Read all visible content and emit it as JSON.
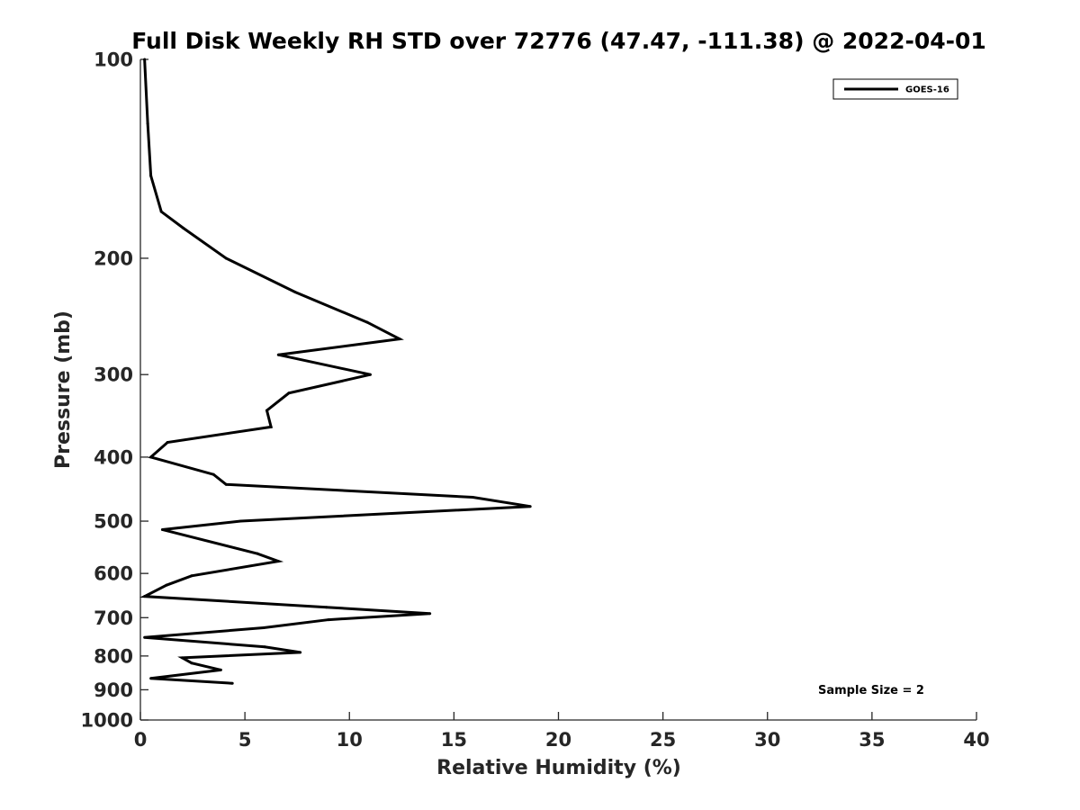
{
  "chart_data": {
    "type": "line",
    "title": "Full Disk Weekly RH STD over 72776 (47.47, -111.38) @ 2022-04-01",
    "xlabel": "Relative Humidity (%)",
    "ylabel": "Pressure (mb)",
    "xlim": [
      0,
      40
    ],
    "ylim": [
      100,
      1000
    ],
    "y_scale": "log",
    "y_reversed": true,
    "x_ticks": [
      0,
      5,
      10,
      15,
      20,
      25,
      30,
      35,
      40
    ],
    "y_ticks": [
      100,
      200,
      300,
      400,
      500,
      600,
      700,
      800,
      900,
      1000
    ],
    "grid": false,
    "legend_position": "top-right",
    "series": [
      {
        "name": "GOES-16",
        "color": "#000000",
        "points": [
          {
            "x": 0.2,
            "y": 100
          },
          {
            "x": 0.35,
            "y": 125
          },
          {
            "x": 0.5,
            "y": 150
          },
          {
            "x": 1.0,
            "y": 170
          },
          {
            "x": 2.05,
            "y": 180
          },
          {
            "x": 4.1,
            "y": 200
          },
          {
            "x": 7.4,
            "y": 225
          },
          {
            "x": 10.85,
            "y": 250
          },
          {
            "x": 12.4,
            "y": 265
          },
          {
            "x": 6.6,
            "y": 280
          },
          {
            "x": 11.0,
            "y": 300
          },
          {
            "x": 7.1,
            "y": 320
          },
          {
            "x": 6.05,
            "y": 340
          },
          {
            "x": 6.25,
            "y": 360
          },
          {
            "x": 1.3,
            "y": 380
          },
          {
            "x": 0.5,
            "y": 400
          },
          {
            "x": 3.5,
            "y": 425
          },
          {
            "x": 4.1,
            "y": 440
          },
          {
            "x": 15.9,
            "y": 460
          },
          {
            "x": 18.65,
            "y": 475
          },
          {
            "x": 4.8,
            "y": 500
          },
          {
            "x": 1.05,
            "y": 515
          },
          {
            "x": 5.6,
            "y": 560
          },
          {
            "x": 6.6,
            "y": 575
          },
          {
            "x": 2.45,
            "y": 605
          },
          {
            "x": 1.25,
            "y": 625
          },
          {
            "x": 0.2,
            "y": 650
          },
          {
            "x": 8.9,
            "y": 675
          },
          {
            "x": 13.85,
            "y": 690
          },
          {
            "x": 9.0,
            "y": 705
          },
          {
            "x": 5.9,
            "y": 725
          },
          {
            "x": 0.2,
            "y": 750
          },
          {
            "x": 5.95,
            "y": 775
          },
          {
            "x": 7.65,
            "y": 790
          },
          {
            "x": 2.0,
            "y": 805
          },
          {
            "x": 2.45,
            "y": 820
          },
          {
            "x": 3.85,
            "y": 840
          },
          {
            "x": 0.5,
            "y": 865
          },
          {
            "x": 4.4,
            "y": 880
          }
        ]
      }
    ],
    "annotations": [
      "Sample Size = 2"
    ]
  }
}
